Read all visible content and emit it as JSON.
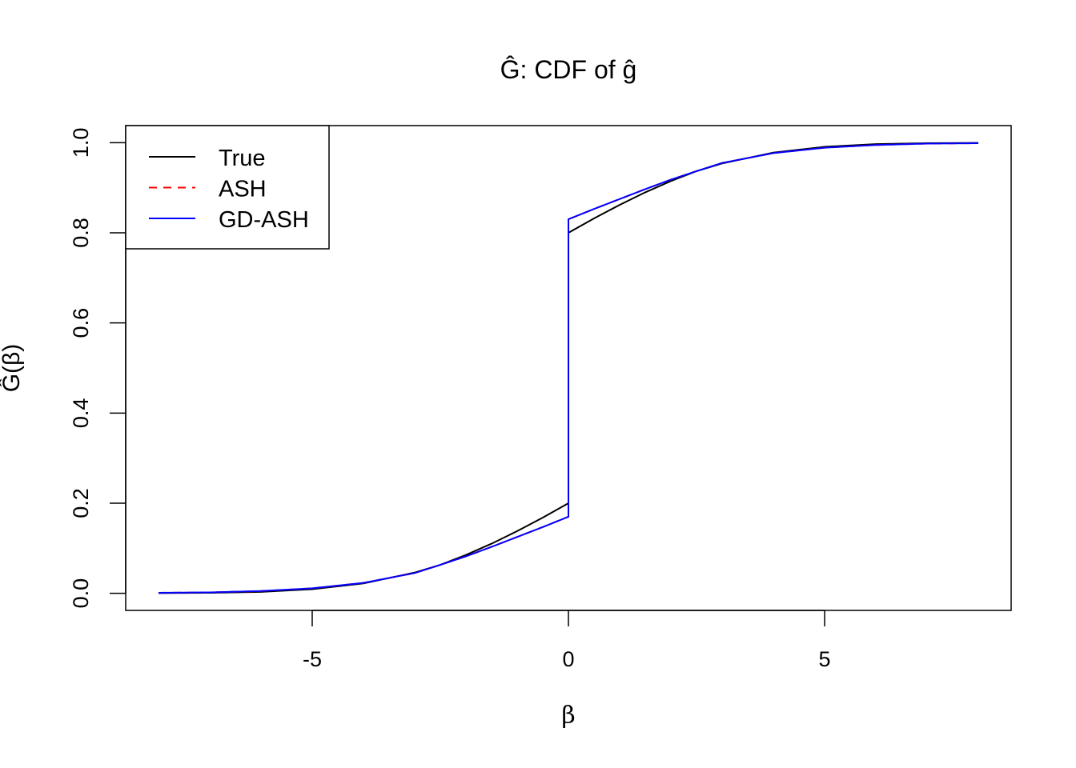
{
  "chart_data": {
    "type": "line",
    "title": "Ĝ: CDF of ĝ",
    "xlabel": "β",
    "ylabel": "Ĝ(β)",
    "xlim": [
      -8.64,
      8.64
    ],
    "ylim": [
      -0.038,
      1.038
    ],
    "x_ticks": [
      -5,
      0,
      5
    ],
    "x_tick_labels": [
      "-5",
      "0",
      "5"
    ],
    "y_ticks": [
      0,
      0.2,
      0.4,
      0.6,
      0.8,
      1.0
    ],
    "y_tick_labels": [
      "0.0",
      "0.2",
      "0.4",
      "0.6",
      "0.8",
      "1.0"
    ],
    "grid": false,
    "legend_position": "top-left",
    "x": [
      -8,
      -7,
      -6,
      -5,
      -4,
      -3,
      -2.5,
      -2,
      -1.5,
      -1,
      -0.5,
      0,
      0,
      0.5,
      1,
      1.5,
      2,
      2.5,
      3,
      4,
      5,
      6,
      7,
      8
    ],
    "series": [
      {
        "name": "True",
        "color": "#000000",
        "dash": "solid",
        "values": [
          0.0003,
          0.001,
          0.003,
          0.009,
          0.022,
          0.046,
          0.063,
          0.085,
          0.11,
          0.138,
          0.168,
          0.2,
          0.8,
          0.832,
          0.862,
          0.89,
          0.915,
          0.937,
          0.954,
          0.978,
          0.991,
          0.997,
          0.999,
          0.9997
        ]
      },
      {
        "name": "ASH",
        "color": "#ff0000",
        "dash": "dashed",
        "values": [
          0.001,
          0.002,
          0.005,
          0.011,
          0.023,
          0.045,
          0.063,
          0.082,
          0.103,
          0.125,
          0.147,
          0.17,
          0.83,
          0.853,
          0.875,
          0.897,
          0.918,
          0.937,
          0.955,
          0.977,
          0.989,
          0.995,
          0.998,
          0.999
        ]
      },
      {
        "name": "GD-ASH",
        "color": "#0000ff",
        "dash": "solid",
        "values": [
          0.001,
          0.002,
          0.005,
          0.011,
          0.023,
          0.045,
          0.063,
          0.082,
          0.103,
          0.125,
          0.147,
          0.17,
          0.83,
          0.853,
          0.875,
          0.897,
          0.918,
          0.937,
          0.955,
          0.977,
          0.989,
          0.995,
          0.998,
          0.999
        ]
      }
    ]
  }
}
